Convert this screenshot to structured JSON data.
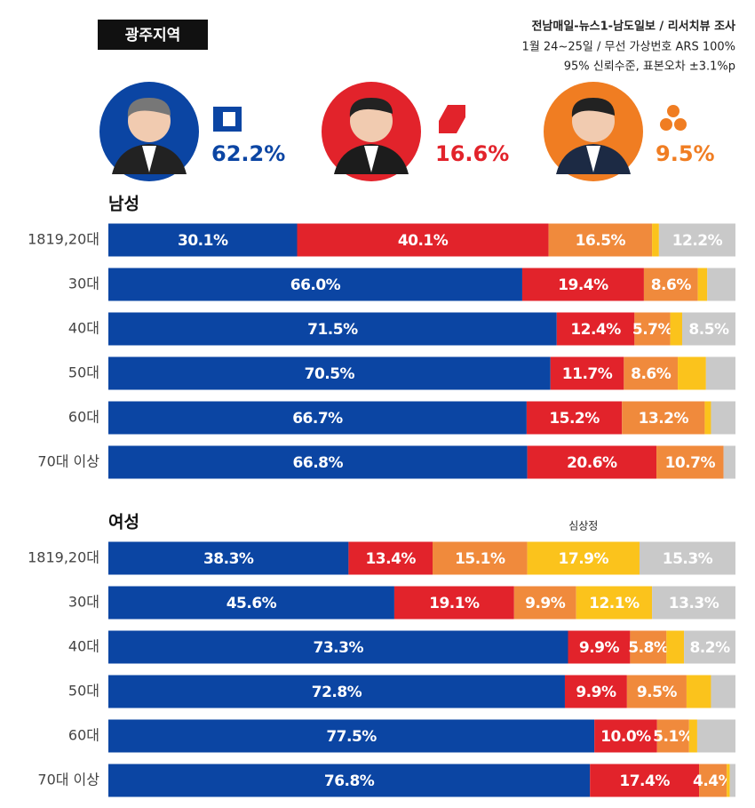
{
  "header": {
    "badge": "광주지역",
    "source": [
      "전남매일-뉴스1-남도일보 / 리서치뷰 조사",
      "1월 24~25일 / 무선 가상번호 ARS 100%",
      "95% 신뢰수준, 표본오차 ±3.1%p"
    ]
  },
  "candidates": [
    {
      "share": "62.2%",
      "color": "#0b45a3"
    },
    {
      "share": "16.6%",
      "color": "#e2232b"
    },
    {
      "share": "9.5%",
      "color": "#f07d22"
    }
  ],
  "chart_data": [
    {
      "type": "stacked-barh",
      "title": "남성",
      "xlim": [
        0,
        100
      ],
      "categories": [
        "1819,20대",
        "30대",
        "40대",
        "50대",
        "60대",
        "70대 이상"
      ],
      "series": [
        {
          "color": "#0b45a3",
          "values": [
            30.1,
            66.0,
            71.5,
            70.5,
            66.7,
            66.8
          ],
          "value_labels": [
            "30.1%",
            "66.0%",
            "71.5%",
            "70.5%",
            "66.7%",
            "66.8%"
          ]
        },
        {
          "color": "#e2232b",
          "values": [
            40.1,
            19.4,
            12.4,
            11.7,
            15.2,
            20.6
          ],
          "value_labels": [
            "40.1%",
            "19.4%",
            "12.4%",
            "11.7%",
            "15.2%",
            "20.6%"
          ]
        },
        {
          "color": "#f08a3c",
          "values": [
            16.5,
            8.6,
            5.7,
            8.6,
            13.2,
            10.7
          ],
          "value_labels": [
            "16.5%",
            "8.6%",
            "5.7%",
            "8.6%",
            "13.2%",
            "10.7%"
          ]
        },
        {
          "color": "#fbc31c",
          "values": [
            1.1,
            1.5,
            1.9,
            4.5,
            1.0,
            0
          ],
          "value_labels": [
            null,
            null,
            null,
            null,
            null,
            null
          ]
        },
        {
          "color": "#c9c9c9",
          "values": [
            12.2,
            4.5,
            8.5,
            4.7,
            3.9,
            1.9
          ],
          "value_labels": [
            "12.2%",
            null,
            "8.5%",
            null,
            null,
            null
          ]
        }
      ]
    },
    {
      "type": "stacked-barh",
      "title": "여성",
      "annotation": "심상정",
      "xlim": [
        0,
        100
      ],
      "categories": [
        "1819,20대",
        "30대",
        "40대",
        "50대",
        "60대",
        "70대 이상"
      ],
      "series": [
        {
          "color": "#0b45a3",
          "values": [
            38.3,
            45.6,
            73.3,
            72.8,
            77.5,
            76.8
          ],
          "value_labels": [
            "38.3%",
            "45.6%",
            "73.3%",
            "72.8%",
            "77.5%",
            "76.8%"
          ]
        },
        {
          "color": "#e2232b",
          "values": [
            13.4,
            19.1,
            9.9,
            9.9,
            10.0,
            17.4
          ],
          "value_labels": [
            "13.4%",
            "19.1%",
            "9.9%",
            "9.9%",
            "10.0%",
            "17.4%"
          ]
        },
        {
          "color": "#f08a3c",
          "values": [
            15.1,
            9.9,
            5.8,
            9.5,
            5.1,
            4.4
          ],
          "value_labels": [
            "15.1%",
            "9.9%",
            "5.8%",
            "9.5%",
            "5.1%",
            "4.4%"
          ]
        },
        {
          "color": "#fbc31c",
          "values": [
            17.9,
            12.1,
            2.8,
            3.9,
            1.3,
            0.5
          ],
          "value_labels": [
            "17.9%",
            "12.1%",
            null,
            null,
            null,
            null
          ]
        },
        {
          "color": "#c9c9c9",
          "values": [
            15.3,
            13.3,
            8.2,
            3.9,
            6.1,
            0.9
          ],
          "value_labels": [
            "15.3%",
            "13.3%",
            "8.2%",
            null,
            null,
            null
          ]
        }
      ]
    }
  ]
}
